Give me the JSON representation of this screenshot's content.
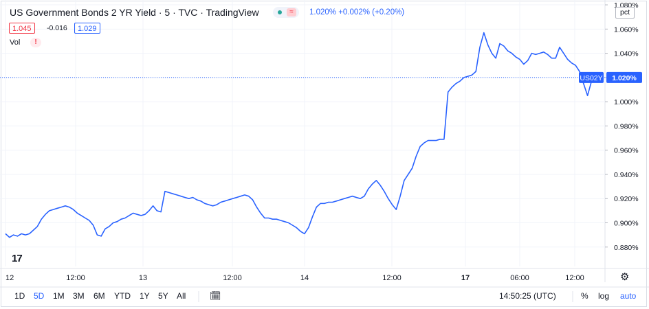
{
  "header": {
    "title": "US Government Bonds 2 YR Yield · 5 · TVC · TradingView",
    "last": "1.020%",
    "change": "+0.002%",
    "change_pct": "(+0.20%)",
    "ohlc_high": "1.045",
    "ohlc_change": "-0.016",
    "ohlc_low": "1.029",
    "vol_label": "Vol",
    "vol_warning": "!"
  },
  "price_scale": {
    "unit": "pct",
    "symbol_tag": "US02Y",
    "last_tag": "1.020%"
  },
  "colors": {
    "line": "#2962ff",
    "grid": "#f0f3fa",
    "down": "#f23645",
    "up": "#26a69a"
  },
  "toolbar": {
    "ranges": [
      "1D",
      "5D",
      "1M",
      "3M",
      "6M",
      "YTD",
      "1Y",
      "5Y",
      "All"
    ],
    "active_range": "5D",
    "date_range_icon": "calendar-icon",
    "clock": "14:50:25 (UTC)",
    "percent": "%",
    "log": "log",
    "auto": "auto",
    "settings_icon": "gear-icon"
  },
  "chart_data": {
    "type": "line",
    "ylim": [
      0.864,
      1.084
    ],
    "y_ticks": [
      "0.880%",
      "0.900%",
      "0.920%",
      "0.940%",
      "0.960%",
      "0.980%",
      "1.000%",
      "1.020%",
      "1.040%",
      "1.060%",
      "1.080%"
    ],
    "x_ticks": [
      "12",
      "12:00",
      "13",
      "12:00",
      "14",
      "12:00",
      "17",
      "06:00",
      "12:00"
    ],
    "last_value": 1.02,
    "series": [
      {
        "values": [
          0.891,
          0.888,
          0.89,
          0.889,
          0.891,
          0.89,
          0.891,
          0.894,
          0.897,
          0.903,
          0.907,
          0.91,
          0.911,
          0.912,
          0.913,
          0.914,
          0.913,
          0.911,
          0.908,
          0.906,
          0.904,
          0.902,
          0.898,
          0.89,
          0.889,
          0.895,
          0.897,
          0.9,
          0.901,
          0.903,
          0.904,
          0.906,
          0.908,
          0.907,
          0.906,
          0.907,
          0.91,
          0.914,
          0.91,
          0.909,
          0.926,
          0.925,
          0.924,
          0.923,
          0.922,
          0.921,
          0.92,
          0.921,
          0.919,
          0.918,
          0.916,
          0.915,
          0.914,
          0.915,
          0.917,
          0.918,
          0.919,
          0.92,
          0.921,
          0.922,
          0.923,
          0.922,
          0.919,
          0.913,
          0.908,
          0.904,
          0.904,
          0.903,
          0.903,
          0.902,
          0.901,
          0.9,
          0.898,
          0.896,
          0.893,
          0.891,
          0.896,
          0.905,
          0.913,
          0.916,
          0.916,
          0.917,
          0.917,
          0.918,
          0.919,
          0.92,
          0.921,
          0.922,
          0.921,
          0.92,
          0.922,
          0.928,
          0.932,
          0.935,
          0.931,
          0.926,
          0.92,
          0.915,
          0.911,
          0.922,
          0.935,
          0.94,
          0.945,
          0.955,
          0.963,
          0.966,
          0.968,
          0.968,
          0.968,
          0.969,
          0.969,
          1.008,
          1.012,
          1.015,
          1.017,
          1.02,
          1.021,
          1.022,
          1.025,
          1.045,
          1.057,
          1.047,
          1.04,
          1.036,
          1.048,
          1.046,
          1.042,
          1.04,
          1.037,
          1.035,
          1.031,
          1.034,
          1.04,
          1.039,
          1.04,
          1.041,
          1.039,
          1.036,
          1.036,
          1.045,
          1.04,
          1.035,
          1.032,
          1.03,
          1.025,
          1.015,
          1.005,
          1.017,
          1.023,
          1.02
        ]
      }
    ]
  }
}
